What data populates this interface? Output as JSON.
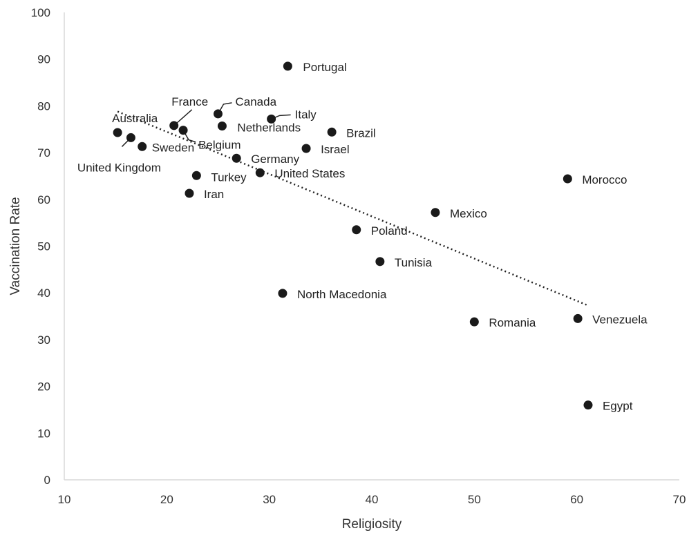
{
  "chart_data": {
    "type": "scatter",
    "xlabel": "Religiosity",
    "ylabel": "Vaccination Rate",
    "xlim": [
      10,
      70
    ],
    "ylim": [
      0,
      100
    ],
    "x_ticks": [
      10,
      20,
      30,
      40,
      50,
      60,
      70
    ],
    "y_ticks": [
      0,
      10,
      20,
      30,
      40,
      50,
      60,
      70,
      80,
      90,
      100
    ],
    "grid": false,
    "points": [
      {
        "label": "Portugal",
        "x": 31.8,
        "y": 88.5
      },
      {
        "label": "Canada",
        "x": 25.0,
        "y": 78.3
      },
      {
        "label": "Italy",
        "x": 30.2,
        "y": 77.2
      },
      {
        "label": "France",
        "x": 20.7,
        "y": 75.8
      },
      {
        "label": "Netherlands",
        "x": 25.4,
        "y": 75.7
      },
      {
        "label": "Australia",
        "x": 15.2,
        "y": 74.3
      },
      {
        "label": "Belgium",
        "x": 21.6,
        "y": 74.8
      },
      {
        "label": "Brazil",
        "x": 36.1,
        "y": 74.4
      },
      {
        "label": "United Kingdom",
        "x": 16.5,
        "y": 73.2
      },
      {
        "label": "Sweden",
        "x": 17.6,
        "y": 71.3
      },
      {
        "label": "Israel",
        "x": 33.6,
        "y": 70.9
      },
      {
        "label": "Germany",
        "x": 26.8,
        "y": 68.8
      },
      {
        "label": "United States",
        "x": 29.1,
        "y": 65.7
      },
      {
        "label": "Turkey",
        "x": 22.9,
        "y": 65.1
      },
      {
        "label": "Morocco",
        "x": 59.1,
        "y": 64.4
      },
      {
        "label": "Iran",
        "x": 22.2,
        "y": 61.3
      },
      {
        "label": "Mexico",
        "x": 46.2,
        "y": 57.2
      },
      {
        "label": "Poland",
        "x": 38.5,
        "y": 53.5
      },
      {
        "label": "Tunisia",
        "x": 40.8,
        "y": 46.7
      },
      {
        "label": "North Macedonia",
        "x": 31.3,
        "y": 39.9
      },
      {
        "label": "Venezuela",
        "x": 60.1,
        "y": 34.5
      },
      {
        "label": "Romania",
        "x": 50.0,
        "y": 33.8
      },
      {
        "label": "Egypt",
        "x": 61.1,
        "y": 16.0
      }
    ],
    "trendline": {
      "style": "dotted",
      "x": [
        15.2,
        61.1
      ],
      "y": [
        78.8,
        37.3
      ]
    }
  }
}
